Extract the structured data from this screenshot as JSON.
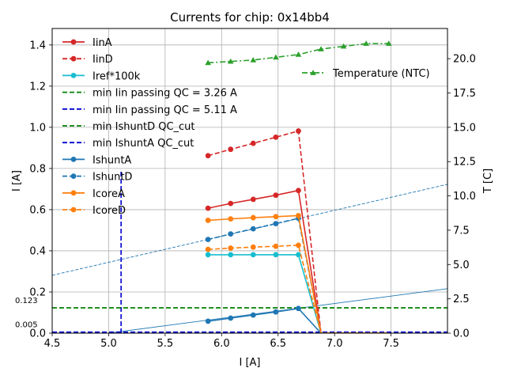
{
  "chart_data": {
    "type": "line",
    "title": "Currents for chip: 0x14bb4",
    "xlabel": "I [A]",
    "ylabel": "I [A]",
    "y2label": "T [C]",
    "xlim": [
      4.5,
      8.0
    ],
    "ylim": [
      0.0,
      1.48
    ],
    "y2lim": [
      0.0,
      22.2
    ],
    "xticks": [
      4.5,
      5.0,
      5.5,
      6.0,
      6.5,
      7.0,
      7.5
    ],
    "xtick_labels": [
      "4.5",
      "5.0",
      "5.5",
      "6.0",
      "6.5",
      "7.0",
      "7.5"
    ],
    "yticks": [
      0.0,
      0.2,
      0.4,
      0.6,
      0.8,
      1.0,
      1.2,
      1.4
    ],
    "ytick_labels": [
      "0.0",
      "0.2",
      "0.4",
      "0.6",
      "0.8",
      "1.0",
      "1.2",
      "1.4"
    ],
    "y2ticks": [
      0.0,
      2.5,
      5.0,
      7.5,
      10.0,
      12.5,
      15.0,
      17.5,
      20.0
    ],
    "y2tick_labels": [
      "0.0",
      "2.5",
      "5.0",
      "7.5",
      "10.0",
      "12.5",
      "15.0",
      "17.5",
      "20.0"
    ],
    "grid": true,
    "legend_position": "upper-left",
    "legend2_position": "upper-right",
    "x": [
      5.88,
      6.08,
      6.28,
      6.48,
      6.68,
      6.88,
      7.08,
      7.28,
      7.48
    ],
    "series": [
      {
        "name": "IinA",
        "color": "#d62728",
        "dash": "solid",
        "marker": "circle",
        "values": [
          0.607,
          0.63,
          0.65,
          0.67,
          0.693,
          0.0,
          0.0,
          0.0,
          0.0
        ]
      },
      {
        "name": "IinD",
        "color": "#d62728",
        "dash": "dashed",
        "marker": "circle",
        "values": [
          0.862,
          0.893,
          0.922,
          0.952,
          0.982,
          0.0,
          0.0,
          0.0,
          0.0
        ]
      },
      {
        "name": "Iref*100k",
        "color": "#17becf",
        "dash": "solid",
        "marker": "circle",
        "values": [
          0.381,
          0.381,
          0.381,
          0.381,
          0.381,
          0.0,
          0.0,
          0.0,
          0.0
        ]
      },
      {
        "name": "IshuntA",
        "color": "#1f77b4",
        "dash": "solid",
        "marker": "circle",
        "values": [
          0.058,
          0.073,
          0.088,
          0.103,
          0.12,
          0.0,
          0.0,
          0.0,
          0.0
        ]
      },
      {
        "name": "IshuntD",
        "color": "#1f77b4",
        "dash": "dashed",
        "marker": "circle",
        "values": [
          0.455,
          0.482,
          0.507,
          0.532,
          0.558,
          0.0,
          0.0,
          0.0,
          0.0
        ]
      },
      {
        "name": "IcoreA",
        "color": "#ff7f0e",
        "dash": "solid",
        "marker": "circle",
        "values": [
          0.548,
          0.555,
          0.561,
          0.566,
          0.571,
          0.0,
          0.0,
          0.0,
          0.0
        ]
      },
      {
        "name": "IcoreD",
        "color": "#ff7f0e",
        "dash": "dashed",
        "marker": "circle",
        "values": [
          0.407,
          0.413,
          0.418,
          0.422,
          0.427,
          0.0,
          0.0,
          0.0,
          0.0
        ]
      }
    ],
    "temperature_series": {
      "name": "Temperature (NTC)",
      "color": "#2ca02c",
      "dash": "dashdot",
      "marker": "triangle",
      "x": [
        5.88,
        6.08,
        6.28,
        6.48,
        6.68,
        6.88,
        7.08,
        7.28,
        7.48
      ],
      "values": [
        19.7,
        19.8,
        19.9,
        20.1,
        20.3,
        20.7,
        20.9,
        21.1,
        21.1
      ]
    },
    "reference_lines": [
      {
        "name": "min Iin passing QC = 3.26 A",
        "color": "#008000",
        "dash": "dashed",
        "orientation": "horizontal",
        "value": 0.123
      },
      {
        "name": "min Iin passing QC = 5.11 A",
        "color": "#0000cd",
        "dash": "dashed",
        "orientation": "vertical",
        "value": 5.11,
        "ymax": 0.786
      },
      {
        "name": "min IshuntD QC_cut",
        "color": "#008000",
        "dash": "dashed",
        "orientation": "horizontal",
        "value": 0.123
      },
      {
        "name": "min IshuntA QC_cut",
        "color": "#0000cd",
        "dash": "dashed",
        "orientation": "horizontal",
        "value": 0.005
      }
    ],
    "fit_lines": [
      {
        "name": "IshuntD fit",
        "color": "#1f77b4",
        "dash": "dashed",
        "x": [
          4.5,
          8.0
        ],
        "y": [
          0.281,
          0.723
        ]
      },
      {
        "name": "IshuntA fit",
        "color": "#1f77b4",
        "dash": "solid",
        "x": [
          5.0,
          8.0
        ],
        "y": [
          0.0,
          0.216
        ]
      }
    ],
    "annotations": [
      {
        "text": "0.123",
        "value": 0.123
      },
      {
        "text": "0.005",
        "value": 0.005
      }
    ]
  }
}
